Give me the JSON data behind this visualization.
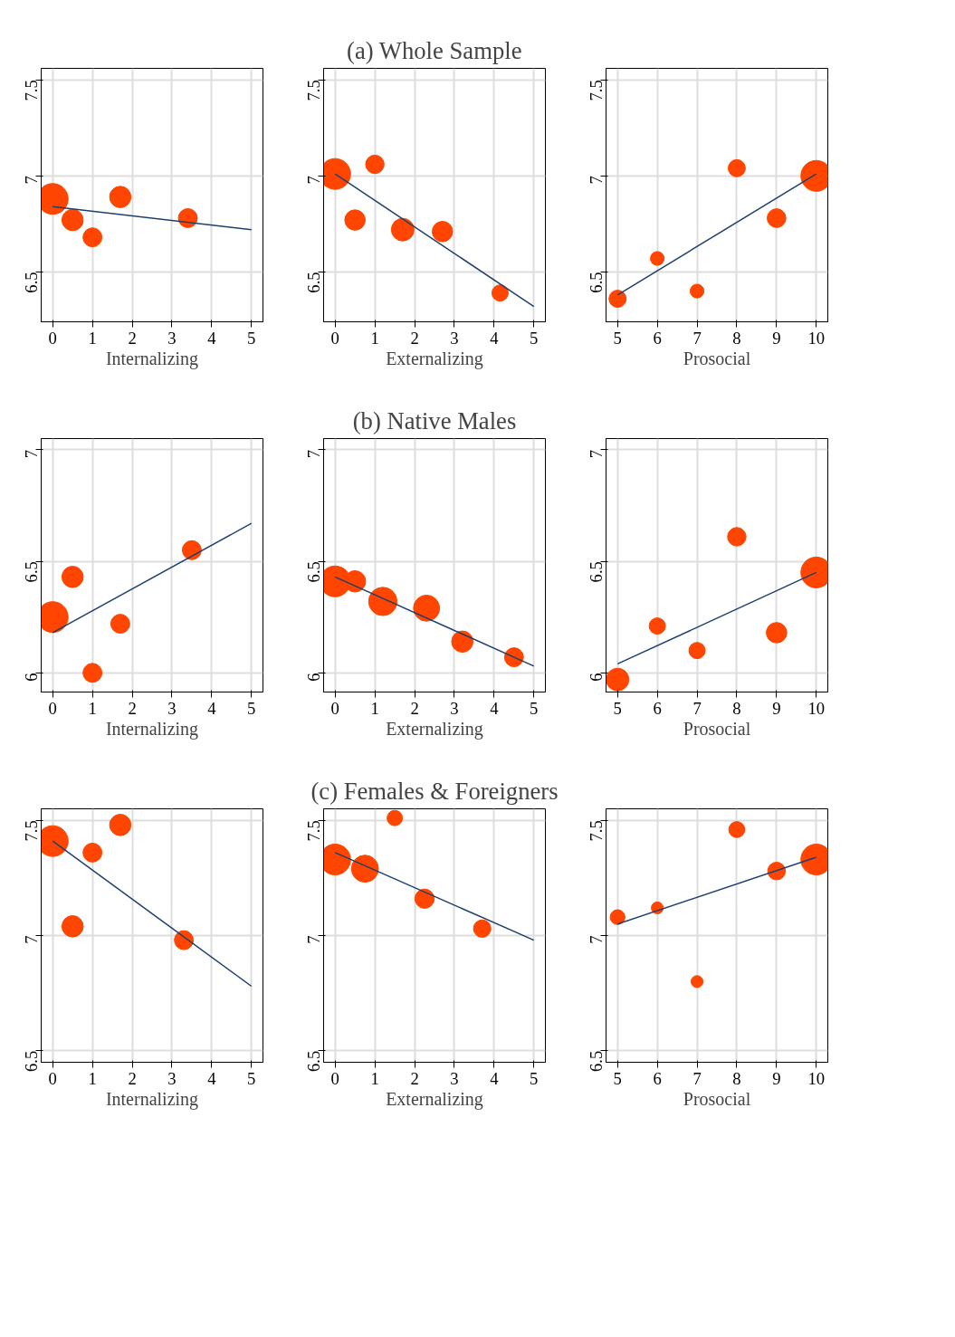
{
  "chart_data": [
    {
      "type": "bubble",
      "xlabel": "Internalizing",
      "xlim": [
        -0.29,
        5.29
      ],
      "ylim": [
        6.24,
        7.56
      ],
      "xticks": [
        0,
        1,
        2,
        3,
        4,
        5
      ],
      "yticks": [
        6.5,
        7,
        7.5
      ],
      "grid": true,
      "series": [
        {
          "color": "#ff4500",
          "x": [
            0,
            0.5,
            1,
            1.7,
            3.4
          ],
          "values": [
            6.88,
            6.77,
            6.68,
            6.89,
            6.78
          ],
          "sizes": [
            1,
            0.48,
            0.38,
            0.48,
            0.38
          ]
        },
        {
          "type": "line",
          "color": "#1f3f6e",
          "x": [
            0,
            5
          ],
          "values": [
            6.84,
            6.72
          ]
        }
      ]
    },
    {
      "type": "bubble",
      "title": "(a) Whole Sample",
      "xlabel": "Externalizing",
      "xlim": [
        -0.29,
        5.29
      ],
      "ylim": [
        6.24,
        7.56
      ],
      "xticks": [
        0,
        1,
        2,
        3,
        4,
        5
      ],
      "yticks": [
        6.5,
        7,
        7.5
      ],
      "grid": true,
      "series": [
        {
          "color": "#ff4500",
          "x": [
            0,
            0.5,
            1,
            1.7,
            2.7,
            4.15
          ],
          "values": [
            7.01,
            6.77,
            7.06,
            6.72,
            6.71,
            6.39
          ],
          "sizes": [
            1,
            0.44,
            0.36,
            0.54,
            0.44,
            0.28
          ]
        },
        {
          "type": "line",
          "color": "#1f3f6e",
          "x": [
            0,
            5
          ],
          "values": [
            7.01,
            6.32
          ]
        }
      ]
    },
    {
      "type": "bubble",
      "xlabel": "Prosocial",
      "xlim": [
        4.71,
        10.29
      ],
      "ylim": [
        6.24,
        7.56
      ],
      "xticks": [
        5,
        6,
        7,
        8,
        9,
        10
      ],
      "yticks": [
        6.5,
        7,
        7.5
      ],
      "grid": true,
      "series": [
        {
          "color": "#ff4500",
          "x": [
            5,
            6,
            7,
            8,
            9,
            10
          ],
          "values": [
            6.36,
            6.57,
            6.4,
            7.04,
            6.78,
            7.0
          ],
          "sizes": [
            0.31,
            0.2,
            0.2,
            0.31,
            0.37,
            1
          ]
        },
        {
          "type": "line",
          "color": "#1f3f6e",
          "x": [
            5,
            10
          ],
          "values": [
            6.38,
            7.01
          ]
        }
      ]
    },
    {
      "type": "bubble",
      "xlabel": "Internalizing",
      "xlim": [
        -0.29,
        5.29
      ],
      "ylim": [
        5.914,
        7.05
      ],
      "xticks": [
        0,
        1,
        2,
        3,
        4,
        5
      ],
      "yticks": [
        6,
        6.5,
        7
      ],
      "grid": true,
      "series": [
        {
          "color": "#ff4500",
          "x": [
            0,
            0.5,
            1,
            1.7,
            3.5
          ],
          "values": [
            6.25,
            6.43,
            6.0,
            6.22,
            6.55
          ],
          "sizes": [
            1,
            0.48,
            0.38,
            0.38,
            0.38
          ]
        },
        {
          "type": "line",
          "color": "#1f3f6e",
          "x": [
            0,
            5
          ],
          "values": [
            6.18,
            6.67
          ]
        }
      ]
    },
    {
      "type": "bubble",
      "title": "(b) Native Males",
      "xlabel": "Externalizing",
      "xlim": [
        -0.29,
        5.29
      ],
      "ylim": [
        5.914,
        7.05
      ],
      "xticks": [
        0,
        1,
        2,
        3,
        4,
        5
      ],
      "yticks": [
        6,
        6.5,
        7
      ],
      "grid": true,
      "series": [
        {
          "color": "#ff4500",
          "x": [
            0,
            0.5,
            1.2,
            2.3,
            3.2,
            4.5
          ],
          "values": [
            6.41,
            6.41,
            6.32,
            6.29,
            6.14,
            6.07
          ],
          "sizes": [
            1,
            0.48,
            0.85,
            0.72,
            0.48,
            0.38
          ]
        },
        {
          "type": "line",
          "color": "#1f3f6e",
          "x": [
            0,
            5
          ],
          "values": [
            6.43,
            6.03
          ]
        }
      ]
    },
    {
      "type": "bubble",
      "xlabel": "Prosocial",
      "xlim": [
        4.71,
        10.29
      ],
      "ylim": [
        5.914,
        7.05
      ],
      "xticks": [
        5,
        6,
        7,
        8,
        9,
        10
      ],
      "yticks": [
        6,
        6.5,
        7
      ],
      "grid": true,
      "series": [
        {
          "color": "#ff4500",
          "x": [
            5,
            6,
            7,
            8,
            9,
            10
          ],
          "values": [
            5.97,
            6.21,
            6.1,
            6.61,
            6.18,
            6.45
          ],
          "sizes": [
            0.54,
            0.28,
            0.28,
            0.36,
            0.44,
            1
          ]
        },
        {
          "type": "line",
          "color": "#1f3f6e",
          "x": [
            5,
            10
          ],
          "values": [
            6.04,
            6.45
          ]
        }
      ]
    },
    {
      "type": "bubble",
      "xlabel": "Internalizing",
      "xlim": [
        -0.29,
        5.29
      ],
      "ylim": [
        6.45,
        7.55
      ],
      "xticks": [
        0,
        1,
        2,
        3,
        4,
        5
      ],
      "yticks": [
        6.5,
        7,
        7.5
      ],
      "grid": true,
      "series": [
        {
          "color": "#ff4500",
          "x": [
            0,
            0.5,
            1,
            1.7,
            3.3
          ],
          "values": [
            7.41,
            7.04,
            7.36,
            7.48,
            6.98
          ],
          "sizes": [
            1,
            0.48,
            0.38,
            0.48,
            0.38
          ]
        },
        {
          "type": "line",
          "color": "#1f3f6e",
          "x": [
            0,
            5
          ],
          "values": [
            7.41,
            6.78
          ]
        }
      ]
    },
    {
      "type": "bubble",
      "title": "(c) Females & Foreigners",
      "xlabel": "Externalizing",
      "xlim": [
        -0.29,
        5.29
      ],
      "ylim": [
        6.45,
        7.55
      ],
      "xticks": [
        0,
        1,
        2,
        3,
        4,
        5
      ],
      "yticks": [
        6.5,
        7,
        7.5
      ],
      "grid": true,
      "series": [
        {
          "color": "#ff4500",
          "x": [
            0,
            0.75,
            1.5,
            2.25,
            3.7
          ],
          "values": [
            7.33,
            7.29,
            7.51,
            7.16,
            7.03
          ],
          "sizes": [
            1,
            0.77,
            0.25,
            0.39,
            0.32
          ]
        },
        {
          "type": "line",
          "color": "#1f3f6e",
          "x": [
            0,
            5
          ],
          "values": [
            7.36,
            6.98
          ]
        }
      ]
    },
    {
      "type": "bubble",
      "xlabel": "Prosocial",
      "xlim": [
        4.71,
        10.29
      ],
      "ylim": [
        6.45,
        7.55
      ],
      "xticks": [
        5,
        6,
        7,
        8,
        9,
        10
      ],
      "yticks": [
        6.5,
        7,
        7.5
      ],
      "grid": true,
      "series": [
        {
          "color": "#ff4500",
          "x": [
            5,
            6,
            7,
            8,
            9,
            10
          ],
          "values": [
            7.08,
            7.12,
            6.8,
            7.46,
            7.28,
            7.33
          ],
          "sizes": [
            0.23,
            0.15,
            0.15,
            0.27,
            0.33,
            1
          ]
        },
        {
          "type": "line",
          "color": "#1f3f6e",
          "x": [
            5,
            10
          ],
          "values": [
            7.05,
            7.34
          ]
        }
      ]
    }
  ]
}
